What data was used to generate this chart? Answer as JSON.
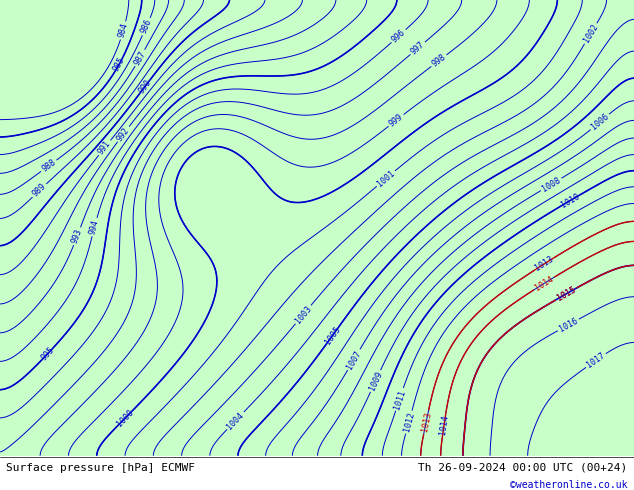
{
  "title_left": "Surface pressure [hPa] ECMWF",
  "title_right": "Th 26-09-2024 00:00 UTC (00+24)",
  "credit": "©weatheronline.co.uk",
  "background_color": "#c8c8c8",
  "land_color": "#c8ffc8",
  "sea_color": "#d0d0d0",
  "isobar_color": "#0000cc",
  "isobar_highlight_color": "#cc0000",
  "isobar_linewidth": 1.0,
  "label_fontsize": 7,
  "footer_fontsize": 8,
  "pressure_min": 985,
  "pressure_max": 1015,
  "pressure_step": 1,
  "lon_min": -6,
  "lon_max": 22,
  "lat_min": 44,
  "lat_max": 62,
  "figsize": [
    6.34,
    4.9
  ],
  "dpi": 100
}
